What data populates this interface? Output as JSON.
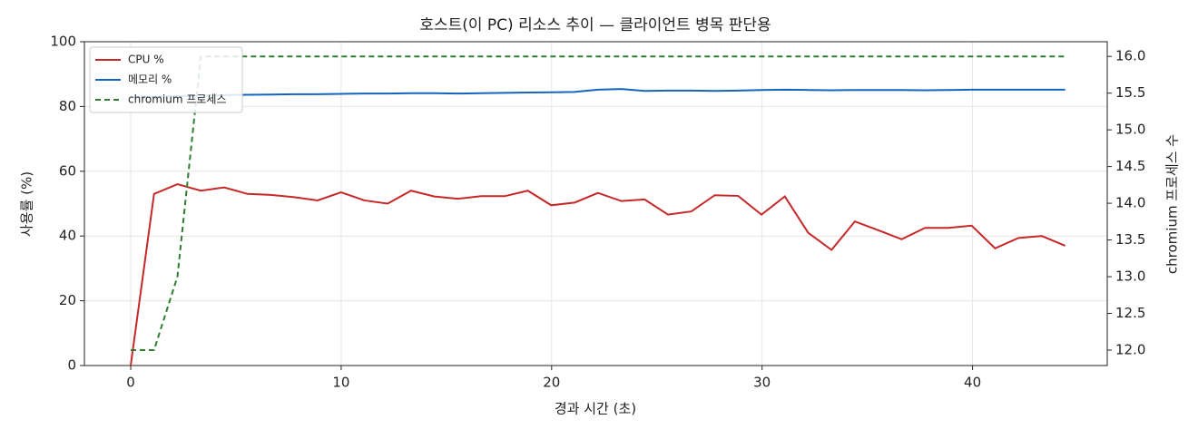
{
  "chart_data": {
    "type": "line",
    "title": "호스트(이 PC) 리소스 추이 — 클라이언트 병목 판단용",
    "xlabel": "경과 시간 (초)",
    "ylabel": "사용률 (%)",
    "y2label": "chromium 프로세스 수",
    "x": [
      0,
      1.11,
      2.22,
      3.33,
      4.44,
      5.55,
      6.66,
      7.77,
      8.88,
      9.99,
      11.1,
      12.21,
      13.32,
      14.43,
      15.54,
      16.65,
      17.76,
      18.87,
      19.98,
      21.09,
      22.2,
      23.31,
      24.42,
      25.53,
      26.64,
      27.75,
      28.86,
      29.97,
      31.08,
      32.19,
      33.3,
      34.41,
      35.52,
      36.63,
      37.74,
      38.85,
      39.96,
      41.07,
      42.18,
      43.29,
      44.4
    ],
    "series": [
      {
        "name": "CPU %",
        "color": "#c62828",
        "style": "solid",
        "values": [
          0,
          53,
          56,
          54,
          55,
          53,
          52.7,
          52,
          51,
          53.5,
          51,
          50,
          54,
          52.2,
          51.5,
          52.3,
          52.3,
          54,
          49.5,
          50.3,
          53.3,
          50.8,
          51.3,
          46.6,
          47.6,
          52.6,
          52.4,
          46.6,
          52.2,
          41,
          35.7,
          44.5,
          41.8,
          39,
          42.5,
          42.5,
          43.2,
          36.2,
          39.4,
          40,
          37
        ]
      },
      {
        "name": "메모리 %",
        "color": "#1565c0",
        "style": "solid",
        "values": [
          83,
          83,
          83.2,
          83.3,
          83.5,
          83.6,
          83.7,
          83.8,
          83.8,
          83.9,
          84,
          84,
          84.1,
          84.1,
          84,
          84.1,
          84.2,
          84.3,
          84.4,
          84.5,
          85.2,
          85.4,
          84.8,
          84.9,
          84.9,
          84.8,
          84.9,
          85.1,
          85.2,
          85.1,
          85,
          85.1,
          85.1,
          85.1,
          85,
          85.1,
          85.2,
          85.2,
          85.2,
          85.2,
          85.2
        ]
      },
      {
        "name": "chromium 프로세스",
        "color": "#2e7d32",
        "style": "dashed",
        "axis": "y2",
        "values": [
          12,
          12,
          13,
          16,
          16,
          16,
          16,
          16,
          16,
          16,
          16,
          16,
          16,
          16,
          16,
          16,
          16,
          16,
          16,
          16,
          16,
          16,
          16,
          16,
          16,
          16,
          16,
          16,
          16,
          16,
          16,
          16,
          16,
          16,
          16,
          16,
          16,
          16,
          16,
          16,
          16
        ]
      }
    ],
    "xlim": [
      -2.2,
      46.4
    ],
    "xticks": [
      0,
      10,
      20,
      30,
      40
    ],
    "ylim": [
      0,
      100
    ],
    "yticks": [
      0,
      20,
      40,
      60,
      80,
      100
    ],
    "y2lim": [
      11.79,
      16.2
    ],
    "y2ticks": [
      {
        "value": 12,
        "label": "12.0"
      },
      {
        "value": 12.5,
        "label": "12.5"
      },
      {
        "value": 13,
        "label": "13.0"
      },
      {
        "value": 13.5,
        "label": "13.5"
      },
      {
        "value": 14,
        "label": "14.0"
      },
      {
        "value": 14.5,
        "label": "14.5"
      },
      {
        "value": 15,
        "label": "15.0"
      },
      {
        "value": 15.5,
        "label": "15.5"
      },
      {
        "value": 16,
        "label": "16.0"
      }
    ],
    "grid": true,
    "legend": "upper-left"
  }
}
